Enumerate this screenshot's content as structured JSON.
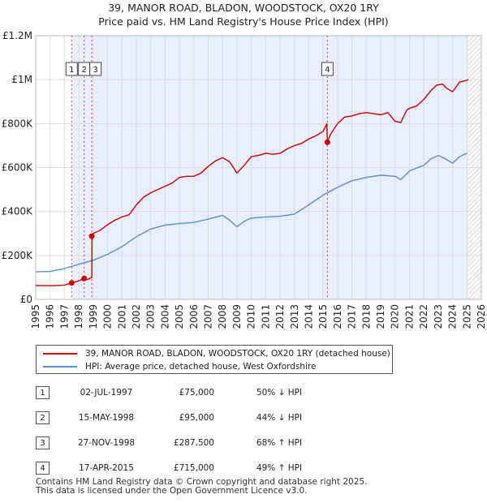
{
  "title_line1": "39, MANOR ROAD, BLADON, WOODSTOCK, OX20 1RY",
  "title_line2": "Price paid vs. HM Land Registry's House Price Index (HPI)",
  "colors": {
    "property": "#cc0000",
    "hpi": "#5b8fd4",
    "shade": "#e8eefb",
    "grid": "#dddddd",
    "sale_line": "#cc0000"
  },
  "chart_data": {
    "type": "line",
    "xlim": [
      1995,
      2026
    ],
    "ylim": [
      0,
      1200000
    ],
    "x_ticks": [
      1995,
      1996,
      1997,
      1998,
      1999,
      2000,
      2001,
      2002,
      2003,
      2004,
      2005,
      2006,
      2007,
      2008,
      2009,
      2010,
      2011,
      2012,
      2013,
      2014,
      2015,
      2016,
      2017,
      2018,
      2019,
      2020,
      2021,
      2022,
      2023,
      2024,
      2025,
      2026
    ],
    "y_ticks": [
      {
        "value": 0,
        "label": "£0"
      },
      {
        "value": 200000,
        "label": "£200K"
      },
      {
        "value": 400000,
        "label": "£400K"
      },
      {
        "value": 600000,
        "label": "£600K"
      },
      {
        "value": 800000,
        "label": "£800K"
      },
      {
        "value": 1000000,
        "label": "£1M"
      },
      {
        "value": 1200000,
        "label": "£1.2M"
      }
    ],
    "shaded_range": [
      1997.5,
      2025.1
    ],
    "hatched_after": 2025.1,
    "series": [
      {
        "name": "39, MANOR ROAD, BLADON, WOODSTOCK, OX20 1RY (detached house)",
        "color": "#cc0000",
        "x": [
          1995.0,
          1996.0,
          1997.0,
          1997.5,
          1997.9,
          1998.37,
          1998.6,
          1998.9,
          1998.92,
          1999.0,
          1999.5,
          2000.0,
          2000.5,
          2001.0,
          2001.5,
          2002.0,
          2002.5,
          2003.0,
          2003.5,
          2004.0,
          2004.5,
          2005.0,
          2005.5,
          2006.0,
          2006.5,
          2007.0,
          2007.5,
          2008.0,
          2008.5,
          2009.0,
          2009.5,
          2010.0,
          2010.5,
          2011.0,
          2011.5,
          2012.0,
          2012.5,
          2013.0,
          2013.5,
          2014.0,
          2014.5,
          2015.0,
          2015.25,
          2015.29,
          2015.5,
          2016.0,
          2016.5,
          2017.0,
          2017.5,
          2018.0,
          2018.5,
          2019.0,
          2019.5,
          2020.0,
          2020.4,
          2020.8,
          2021.0,
          2021.5,
          2022.0,
          2022.5,
          2022.9,
          2023.3,
          2023.6,
          2024.0,
          2024.5,
          2024.9,
          2025.1
        ],
        "values": [
          63000,
          62000,
          65000,
          75000,
          82000,
          95000,
          90000,
          100000,
          287500,
          300000,
          315000,
          340000,
          360000,
          375000,
          385000,
          430000,
          465000,
          485000,
          500000,
          515000,
          530000,
          555000,
          560000,
          560000,
          575000,
          605000,
          630000,
          645000,
          625000,
          575000,
          610000,
          650000,
          655000,
          665000,
          660000,
          665000,
          685000,
          700000,
          710000,
          730000,
          745000,
          765000,
          800000,
          715000,
          750000,
          800000,
          830000,
          835000,
          845000,
          850000,
          845000,
          840000,
          850000,
          810000,
          805000,
          860000,
          870000,
          880000,
          910000,
          950000,
          975000,
          980000,
          960000,
          945000,
          990000,
          995000,
          1000000
        ]
      },
      {
        "name": "HPI: Average price, detached house, West Oxfordshire",
        "color": "#5b8fd4",
        "x": [
          1995.0,
          1996.0,
          1997.0,
          1998.0,
          1999.0,
          2000.0,
          2001.0,
          2002.0,
          2003.0,
          2004.0,
          2005.0,
          2006.0,
          2007.0,
          2008.0,
          2008.5,
          2009.0,
          2009.5,
          2010.0,
          2011.0,
          2012.0,
          2013.0,
          2014.0,
          2015.0,
          2016.0,
          2017.0,
          2018.0,
          2019.0,
          2020.0,
          2020.4,
          2020.8,
          2021.0,
          2022.0,
          2022.5,
          2023.0,
          2023.5,
          2024.0,
          2024.5,
          2025.0
        ],
        "values": [
          125000,
          127000,
          140000,
          160000,
          178000,
          205000,
          240000,
          285000,
          320000,
          338000,
          345000,
          350000,
          365000,
          382000,
          360000,
          330000,
          355000,
          370000,
          375000,
          378000,
          388000,
          430000,
          475000,
          510000,
          540000,
          555000,
          565000,
          560000,
          545000,
          570000,
          585000,
          610000,
          640000,
          655000,
          640000,
          620000,
          650000,
          665000
        ]
      }
    ],
    "sales": [
      {
        "id": "1",
        "year": 1997.5,
        "price": 75000,
        "date": "02-JUL-1997",
        "price_label": "£75,000",
        "hpi": "50% ↓ HPI"
      },
      {
        "id": "2",
        "year": 1998.37,
        "price": 95000,
        "date": "15-MAY-1998",
        "price_label": "£95,000",
        "hpi": "44% ↓ HPI"
      },
      {
        "id": "3",
        "year": 1998.9,
        "price": 287500,
        "date": "27-NOV-1998",
        "price_label": "£287,500",
        "hpi": "68% ↑ HPI"
      },
      {
        "id": "4",
        "year": 2015.29,
        "price": 715000,
        "date": "17-APR-2015",
        "price_label": "£715,000",
        "hpi": "49% ↑ HPI"
      }
    ]
  },
  "legend": {
    "property_label": "39, MANOR ROAD, BLADON, WOODSTOCK, OX20 1RY (detached house)",
    "hpi_label": "HPI: Average price, detached house, West Oxfordshire"
  },
  "footer": {
    "line1": "Contains HM Land Registry data © Crown copyright and database right 2025.",
    "line2": "This data is licensed under the Open Government Licence v3.0."
  }
}
